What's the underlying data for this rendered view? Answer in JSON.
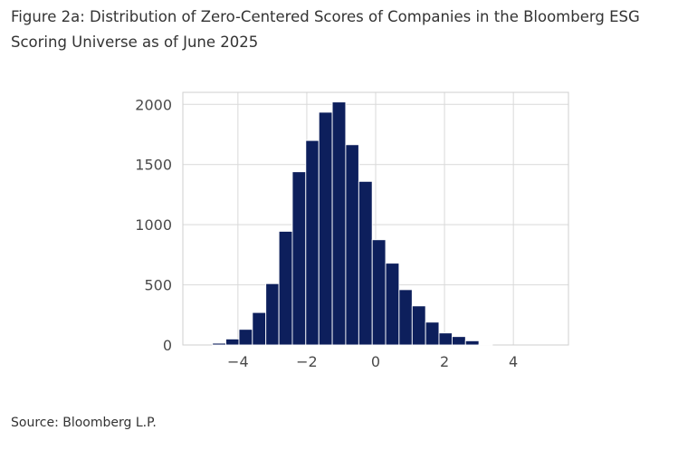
{
  "header": {
    "title": "Figure 2a: Distribution of Zero-Centered Scores of Companies in the Bloomberg ESG Scoring Universe as of June 2025"
  },
  "footer": {
    "source": "Source: Bloomberg L.P."
  },
  "chart_data": {
    "type": "bar",
    "title": "",
    "xlabel": "",
    "ylabel": "",
    "bar_color": "#0d1f5c",
    "grid_color": "#d9d9d9",
    "grid": true,
    "xlim": [
      -5.6,
      5.6
    ],
    "ylim": [
      0,
      2100
    ],
    "x_ticks": [
      -4,
      -2,
      0,
      2,
      4
    ],
    "x_tick_labels": [
      "−4",
      "−2",
      "0",
      "2",
      "4"
    ],
    "y_ticks": [
      0,
      500,
      1000,
      1500,
      2000
    ],
    "y_tick_labels": [
      "0",
      "500",
      "1000",
      "1500",
      "2000"
    ],
    "bins": [
      {
        "x0": -4.74,
        "x1": -4.35,
        "count": 15
      },
      {
        "x0": -4.35,
        "x1": -3.97,
        "count": 50
      },
      {
        "x0": -3.97,
        "x1": -3.58,
        "count": 130
      },
      {
        "x0": -3.58,
        "x1": -3.19,
        "count": 270
      },
      {
        "x0": -3.19,
        "x1": -2.81,
        "count": 510
      },
      {
        "x0": -2.81,
        "x1": -2.42,
        "count": 945
      },
      {
        "x0": -2.42,
        "x1": -2.03,
        "count": 1440
      },
      {
        "x0": -2.03,
        "x1": -1.65,
        "count": 1700
      },
      {
        "x0": -1.65,
        "x1": -1.26,
        "count": 1935
      },
      {
        "x0": -1.26,
        "x1": -0.87,
        "count": 2020
      },
      {
        "x0": -0.87,
        "x1": -0.49,
        "count": 1665
      },
      {
        "x0": -0.49,
        "x1": -0.1,
        "count": 1360
      },
      {
        "x0": -0.1,
        "x1": 0.29,
        "count": 875
      },
      {
        "x0": 0.29,
        "x1": 0.68,
        "count": 680
      },
      {
        "x0": 0.68,
        "x1": 1.06,
        "count": 460
      },
      {
        "x0": 1.06,
        "x1": 1.45,
        "count": 325
      },
      {
        "x0": 1.45,
        "x1": 1.84,
        "count": 190
      },
      {
        "x0": 1.84,
        "x1": 2.22,
        "count": 100
      },
      {
        "x0": 2.22,
        "x1": 2.61,
        "count": 70
      },
      {
        "x0": 2.61,
        "x1": 3.0,
        "count": 35
      },
      {
        "x0": 3.0,
        "x1": 3.39,
        "count": 5
      }
    ]
  }
}
